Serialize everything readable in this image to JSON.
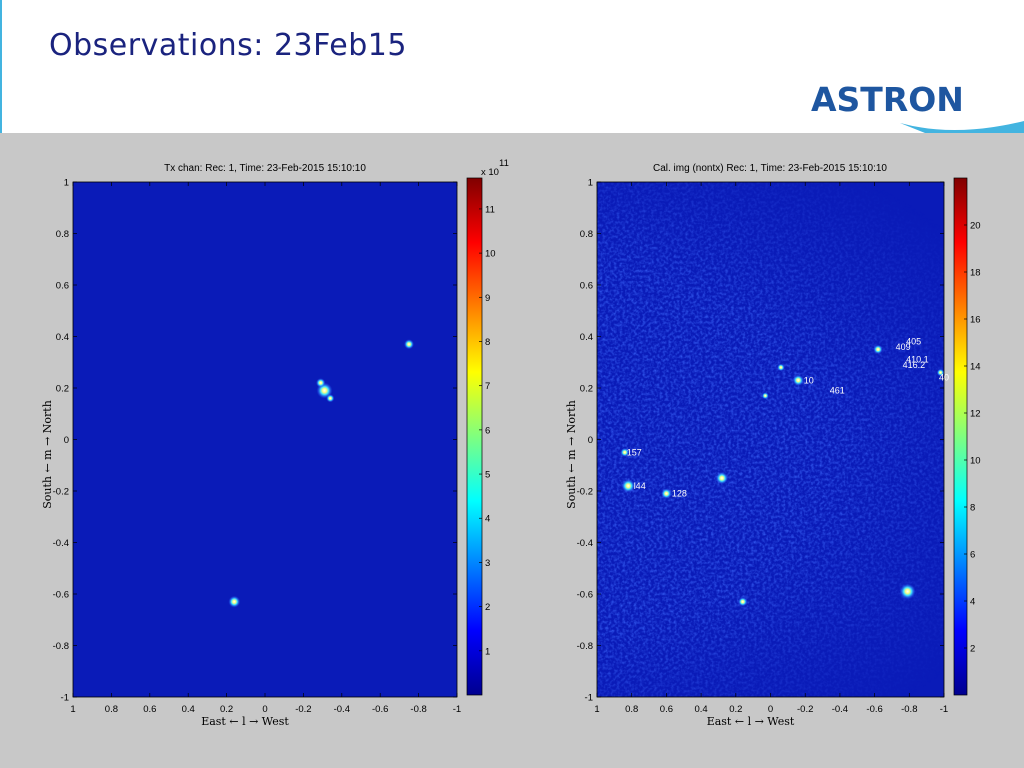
{
  "slide": {
    "title": "Observations: 23Feb15",
    "logo_text": "ASTRON",
    "colors": {
      "title": "#1a237e",
      "accent": "#43b4e0",
      "logo": "#1e56a0",
      "background_panel": "#c8c8c8"
    }
  },
  "chart_data": [
    {
      "type": "heatmap",
      "title": "Tx chan: Rec: 1, Time: 23-Feb-2015 15:10:10",
      "xlabel": "East ← l → West",
      "ylabel": "South ← m → North",
      "xlim": [
        1,
        -1
      ],
      "ylim": [
        -1,
        1
      ],
      "xticks": [
        "1",
        "0.8",
        "0.6",
        "0.4",
        "0.2",
        "0",
        "-0.2",
        "-0.4",
        "-0.6",
        "-0.8",
        "-1"
      ],
      "yticks": [
        "1",
        "0.8",
        "0.6",
        "0.4",
        "0.2",
        "0",
        "-0.2",
        "-0.4",
        "-0.6",
        "-0.8",
        "-1"
      ],
      "colormap": "jet",
      "colorbar": {
        "ticks": [
          "1",
          "2",
          "3",
          "4",
          "5",
          "6",
          "7",
          "8",
          "9",
          "10",
          "11"
        ],
        "scale_label": "x 10",
        "scale_exp": "11",
        "range": [
          0,
          11.7
        ]
      },
      "sources": [
        {
          "l": -0.31,
          "m": 0.19,
          "intensity": 1.0
        },
        {
          "l": -0.29,
          "m": 0.22,
          "intensity": 0.45
        },
        {
          "l": -0.34,
          "m": 0.16,
          "intensity": 0.35
        },
        {
          "l": -0.75,
          "m": 0.37,
          "intensity": 0.5
        },
        {
          "l": 0.16,
          "m": -0.63,
          "intensity": 0.65
        }
      ],
      "annotations": []
    },
    {
      "type": "heatmap",
      "title": "Cal. img (nontx) Rec: 1, Time: 23-Feb-2015 15:10:10",
      "xlabel": "East ← l → West",
      "ylabel": "South ← m → North",
      "xlim": [
        1,
        -1
      ],
      "ylim": [
        -1,
        1
      ],
      "xticks": [
        "1",
        "0.8",
        "0.6",
        "0.4",
        "0.2",
        "0",
        "-0.2",
        "-0.4",
        "-0.6",
        "-0.8",
        "-1"
      ],
      "yticks": [
        "1",
        "0.8",
        "0.6",
        "0.4",
        "0.2",
        "0",
        "-0.2",
        "-0.4",
        "-0.6",
        "-0.8",
        "-1"
      ],
      "colormap": "jet",
      "colorbar": {
        "ticks": [
          "2",
          "4",
          "6",
          "8",
          "10",
          "12",
          "14",
          "16",
          "18",
          "20"
        ],
        "scale_label": "",
        "scale_exp": "",
        "range": [
          0,
          22
        ]
      },
      "sources": [
        {
          "l": 0.82,
          "m": -0.18,
          "intensity": 0.8
        },
        {
          "l": 0.28,
          "m": -0.15,
          "intensity": 0.7
        },
        {
          "l": 0.6,
          "m": -0.21,
          "intensity": 0.55
        },
        {
          "l": -0.16,
          "m": 0.23,
          "intensity": 0.6
        },
        {
          "l": -0.79,
          "m": -0.59,
          "intensity": 1.0
        },
        {
          "l": -0.62,
          "m": 0.35,
          "intensity": 0.45
        },
        {
          "l": 0.84,
          "m": -0.05,
          "intensity": 0.4
        },
        {
          "l": 0.16,
          "m": -0.63,
          "intensity": 0.45
        },
        {
          "l": -0.06,
          "m": 0.28,
          "intensity": 0.3
        },
        {
          "l": -0.98,
          "m": 0.26,
          "intensity": 0.3
        },
        {
          "l": 0.03,
          "m": 0.17,
          "intensity": 0.25
        }
      ],
      "annotations": [
        {
          "text": "157",
          "l": 0.84,
          "m": -0.05
        },
        {
          "text": "l44",
          "l": 0.8,
          "m": -0.18
        },
        {
          "text": "128",
          "l": 0.58,
          "m": -0.21
        },
        {
          "text": "10",
          "l": -0.18,
          "m": 0.23
        },
        {
          "text": "461",
          "l": -0.33,
          "m": 0.19
        },
        {
          "text": "409",
          "l": -0.71,
          "m": 0.36
        },
        {
          "text": "405",
          "l": -0.77,
          "m": 0.38
        },
        {
          "text": "410.1",
          "l": -0.77,
          "m": 0.31
        },
        {
          "text": "416.2",
          "l": -0.75,
          "m": 0.29
        },
        {
          "text": "40",
          "l": -0.96,
          "m": 0.24
        }
      ]
    }
  ]
}
